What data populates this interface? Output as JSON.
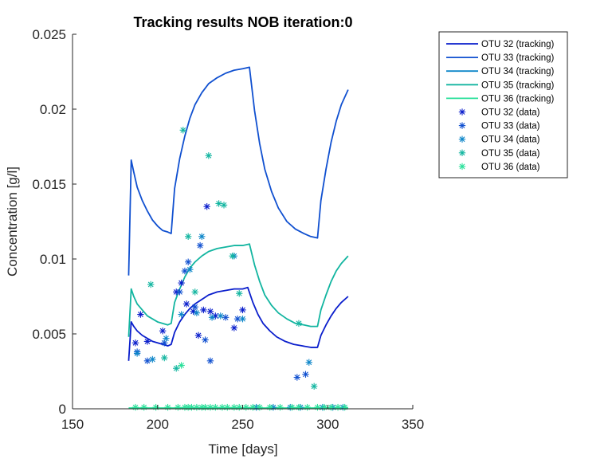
{
  "chart_data": {
    "type": "line",
    "title": "Tracking results NOB iteration:0",
    "xlabel": "Time [days]",
    "ylabel": "Concentration [g/l]",
    "xlim": [
      150,
      350
    ],
    "ylim": [
      0,
      0.025
    ],
    "xticks": [
      150,
      200,
      250,
      300,
      350
    ],
    "xtick_labels": [
      "150",
      "200",
      "250",
      "300",
      "350"
    ],
    "yticks": [
      0,
      0.005,
      0.01,
      0.015,
      0.02,
      0.025
    ],
    "ytick_labels": [
      "0",
      "0.005",
      "0.01",
      "0.015",
      "0.02",
      "0.025"
    ],
    "grid": false,
    "legend_position": "outside-top-right",
    "series": [
      {
        "name": "OTU 32 (tracking)",
        "kind": "line",
        "color": "#0a1ecc",
        "x": [
          183,
          184.5,
          186,
          188,
          191,
          194,
          197,
          200,
          203,
          206,
          208,
          210,
          213,
          216,
          219,
          222,
          226,
          230,
          235,
          240,
          245,
          250,
          253,
          256,
          259,
          262,
          266,
          270,
          275,
          280,
          285,
          290,
          294,
          296,
          299,
          302,
          305,
          308,
          312
        ],
        "y": [
          0.0032,
          0.0058,
          0.0055,
          0.0052,
          0.0049,
          0.0047,
          0.0045,
          0.0044,
          0.0043,
          0.0042,
          0.0043,
          0.0051,
          0.0058,
          0.0063,
          0.0067,
          0.007,
          0.0073,
          0.0076,
          0.0078,
          0.0079,
          0.008,
          0.008,
          0.0081,
          0.0071,
          0.0063,
          0.0057,
          0.0052,
          0.0048,
          0.0045,
          0.0043,
          0.0042,
          0.0041,
          0.0041,
          0.0049,
          0.0056,
          0.0062,
          0.0067,
          0.0071,
          0.0075
        ]
      },
      {
        "name": "OTU 33 (tracking)",
        "kind": "line",
        "color": "#1050d0",
        "x": [
          183,
          184.5,
          186,
          188,
          191,
          194,
          197,
          200,
          203,
          206,
          208,
          210,
          213,
          216,
          219,
          222,
          226,
          230,
          235,
          240,
          245,
          250,
          254,
          257,
          260,
          263,
          267,
          271,
          276,
          281,
          286,
          290,
          294,
          296,
          299,
          302,
          305,
          308,
          312
        ],
        "y": [
          0.0089,
          0.0166,
          0.0158,
          0.0148,
          0.0139,
          0.0132,
          0.0126,
          0.0122,
          0.0119,
          0.0118,
          0.0117,
          0.0147,
          0.0167,
          0.0182,
          0.0194,
          0.0203,
          0.0211,
          0.0217,
          0.0221,
          0.0224,
          0.0226,
          0.0227,
          0.0228,
          0.0199,
          0.0177,
          0.016,
          0.0145,
          0.0134,
          0.0125,
          0.012,
          0.0117,
          0.0115,
          0.0114,
          0.0139,
          0.016,
          0.0178,
          0.0192,
          0.0203,
          0.0213
        ]
      },
      {
        "name": "OTU 34 (tracking)",
        "kind": "line",
        "color": "#0d86c9",
        "x": [
          183,
          200,
          220,
          240,
          260,
          280,
          300,
          312
        ],
        "y": [
          3e-05,
          3e-05,
          3e-05,
          3e-05,
          3e-05,
          3e-05,
          3e-05,
          3e-05
        ]
      },
      {
        "name": "OTU 35 (tracking)",
        "kind": "line",
        "color": "#12b5a0",
        "x": [
          183,
          184.5,
          186,
          188,
          191,
          194,
          197,
          200,
          203,
          206,
          208,
          210,
          213,
          216,
          219,
          222,
          226,
          230,
          235,
          240,
          245,
          250,
          254,
          257,
          260,
          263,
          267,
          271,
          276,
          281,
          286,
          290,
          294,
          296,
          299,
          302,
          305,
          308,
          312
        ],
        "y": [
          0.0048,
          0.008,
          0.0075,
          0.007,
          0.0066,
          0.0062,
          0.006,
          0.0058,
          0.0057,
          0.0056,
          0.0057,
          0.0071,
          0.008,
          0.0088,
          0.0094,
          0.0098,
          0.0102,
          0.0105,
          0.0107,
          0.0108,
          0.0109,
          0.0109,
          0.011,
          0.0096,
          0.0085,
          0.0076,
          0.0069,
          0.0064,
          0.006,
          0.0057,
          0.0056,
          0.0055,
          0.0055,
          0.0066,
          0.0076,
          0.0085,
          0.0092,
          0.0097,
          0.0102
        ]
      },
      {
        "name": "OTU 36 (tracking)",
        "kind": "line",
        "color": "#29e09a",
        "x": [
          183,
          200,
          220,
          240,
          260,
          280,
          300,
          312
        ],
        "y": [
          5e-05,
          5e-05,
          5e-05,
          5e-05,
          5e-05,
          5e-05,
          5e-05,
          5e-05
        ]
      },
      {
        "name": "OTU 32 (data)",
        "kind": "scatter",
        "color": "#0a1ecc",
        "x": [
          187,
          190,
          194,
          203,
          211,
          214,
          217,
          221,
          224,
          227,
          229,
          231,
          234,
          245,
          250
        ],
        "y": [
          0.0044,
          0.0063,
          0.0045,
          0.0052,
          0.0078,
          0.0084,
          0.007,
          0.0065,
          0.0049,
          0.0066,
          0.0135,
          0.0065,
          0.0062,
          0.0054,
          0.0066
        ]
      },
      {
        "name": "OTU 33 (data)",
        "kind": "scatter",
        "color": "#1050d0",
        "x": [
          188,
          194,
          204,
          213,
          216,
          218,
          222,
          225,
          228,
          231,
          240,
          247,
          282,
          287
        ],
        "y": [
          0.0038,
          0.0032,
          0.0044,
          0.0078,
          0.0092,
          0.0098,
          0.0068,
          0.0109,
          0.0046,
          0.0032,
          0.0061,
          0.006,
          0.0021,
          0.0023
        ]
      },
      {
        "name": "OTU 34 (data)",
        "kind": "scatter",
        "color": "#0d86c9",
        "x": [
          188,
          197,
          205,
          214,
          219,
          223,
          226,
          232,
          237,
          245,
          250,
          258,
          268,
          278,
          284,
          289,
          297,
          303,
          309
        ],
        "y": [
          0.0037,
          0.0033,
          0.0047,
          0.0063,
          0.0093,
          0.0064,
          0.0115,
          0.0061,
          0.0062,
          0.0102,
          0.006,
          0.0001,
          0.0001,
          0.0001,
          0.0001,
          0.0031,
          0.0001,
          0.0001,
          0.0001
        ]
      },
      {
        "name": "OTU 35 (data)",
        "kind": "scatter",
        "color": "#12b5a0",
        "x": [
          196,
          204,
          211,
          215,
          218,
          222,
          230,
          236,
          239,
          244,
          248,
          283,
          292
        ],
        "y": [
          0.0083,
          0.0034,
          0.0027,
          0.0186,
          0.0115,
          0.0078,
          0.0169,
          0.0137,
          0.0136,
          0.0102,
          0.0077,
          0.0057,
          0.0015
        ]
      },
      {
        "name": "OTU 36 (data)",
        "kind": "scatter",
        "color": "#29e09a",
        "x": [
          187,
          192,
          199,
          206,
          212,
          214,
          216,
          218,
          220,
          223,
          226,
          228,
          231,
          234,
          238,
          241,
          245,
          248,
          252,
          256,
          260,
          266,
          272,
          279,
          283,
          288,
          294,
          298,
          302,
          306,
          310
        ],
        "y": [
          0.0001,
          0.0001,
          0.0001,
          0.0001,
          0.0001,
          0.0029,
          0.0001,
          0.0001,
          0.0001,
          0.0001,
          0.0001,
          0.0001,
          0.0001,
          0.0001,
          0.0001,
          0.0001,
          0.0001,
          0.0001,
          0.0001,
          0.0001,
          0.0001,
          0.0001,
          0.0001,
          0.0001,
          0.0001,
          0.0001,
          0.0001,
          0.0001,
          0.0001,
          0.0001,
          0.0001
        ]
      }
    ]
  }
}
